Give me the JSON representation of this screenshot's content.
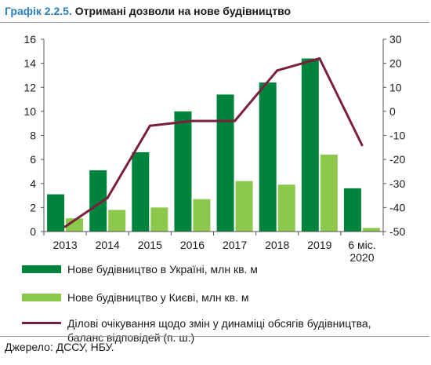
{
  "header": {
    "figure_num": "Графік 2.2.5.",
    "title": "Отримані дозволи на нове будівництво"
  },
  "source": "Джерело: ДССУ, НБУ.",
  "colors": {
    "dark_green": "#00843d",
    "light_green": "#8cc84b",
    "line": "#7a1f3d",
    "axis": "#555555"
  },
  "chart_data": {
    "type": "bar",
    "categories": [
      "2013",
      "2014",
      "2015",
      "2016",
      "2017",
      "2018",
      "2019",
      "6 міс. 2020"
    ],
    "category_lines": [
      [
        "2013"
      ],
      [
        "2014"
      ],
      [
        "2015"
      ],
      [
        "2016"
      ],
      [
        "2017"
      ],
      [
        "2018"
      ],
      [
        "2019"
      ],
      [
        "6 міс.",
        "2020"
      ]
    ],
    "series": [
      {
        "name": "Нове будівництво в Україні, млн кв. м",
        "type": "bar",
        "axis": "left",
        "values": [
          3.1,
          5.1,
          6.6,
          10.0,
          11.4,
          12.4,
          14.4,
          3.6
        ]
      },
      {
        "name": "Нове будівництво у Києві, млн кв. м",
        "type": "bar",
        "axis": "left",
        "values": [
          1.1,
          1.8,
          2.0,
          2.7,
          4.2,
          3.9,
          6.4,
          0.3
        ]
      },
      {
        "name": "Ділові очікування щодо змін у динаміці обсягів будівництва, баланс відповідей (п. ш.)",
        "name_lines": [
          "Ділові очікування щодо змін у динаміці обсягів будівництва,",
          "баланс відповідей (п. ш.)"
        ],
        "type": "line",
        "axis": "right",
        "values": [
          -48,
          -36,
          -6,
          -4,
          -4,
          17,
          22,
          -14
        ]
      }
    ],
    "y_left": {
      "min": 0,
      "max": 16,
      "ticks": [
        0,
        2,
        4,
        6,
        8,
        10,
        12,
        14,
        16
      ]
    },
    "y_right": {
      "min": -50,
      "max": 30,
      "ticks": [
        -50,
        -40,
        -30,
        -20,
        -10,
        0,
        10,
        20,
        30
      ]
    },
    "grid": false,
    "legend_position": "bottom"
  }
}
